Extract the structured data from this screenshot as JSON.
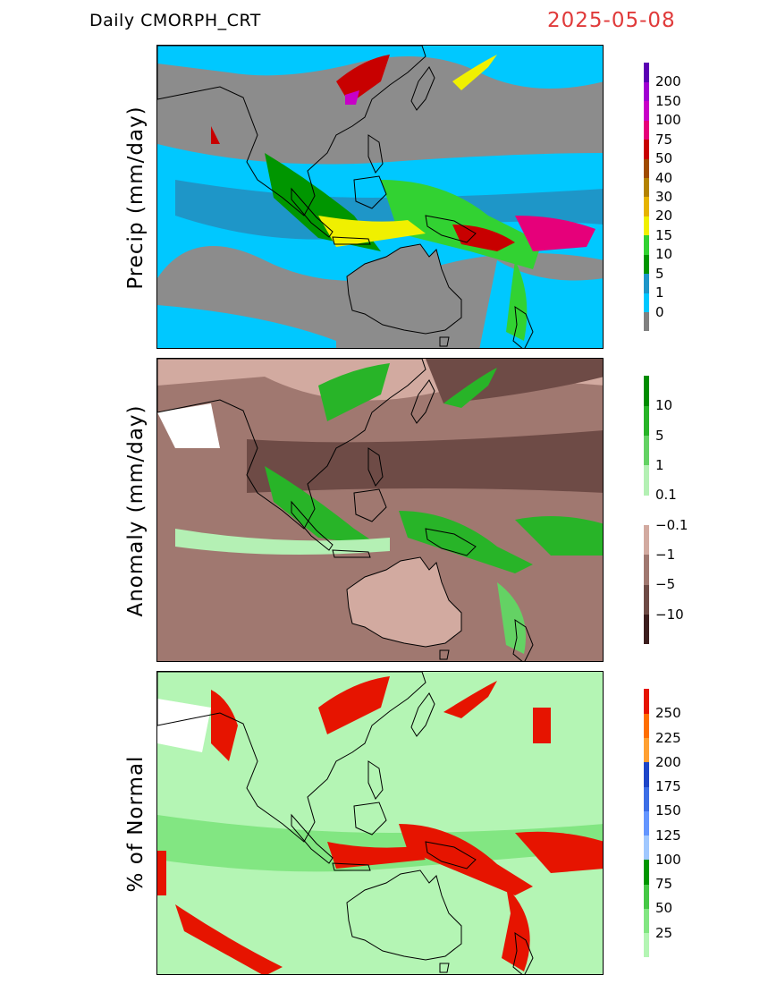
{
  "header": {
    "title": "Daily CMORPH_CRT",
    "date": "2025-05-08"
  },
  "panels": [
    {
      "id": "precip",
      "label": "Precip (mm/day)",
      "colorbar": {
        "colors": [
          "#808080",
          "#00c8ff",
          "#1e96c8",
          "#009600",
          "#32d232",
          "#f0f000",
          "#e6b400",
          "#b48200",
          "#a04b00",
          "#c80000",
          "#e6007a",
          "#c800c8",
          "#a000d2",
          "#5a00b4"
        ],
        "labels": [
          "0",
          "1",
          "5",
          "10",
          "15",
          "20",
          "30",
          "40",
          "50",
          "75",
          "100",
          "150",
          "200"
        ]
      }
    },
    {
      "id": "anomaly",
      "label": "Anomaly (mm/day)",
      "colorbar": {
        "colors": [
          "#3c1e1e",
          "#6e4b46",
          "#a07870",
          "#d2aaa0",
          "#ffffff",
          "#b4f0b4",
          "#64d264",
          "#28b428",
          "#008c00"
        ],
        "labels": [
          "−10",
          "−5",
          "−1",
          "−0.1",
          "0.1",
          "1",
          "5",
          "10"
        ]
      }
    },
    {
      "id": "percent",
      "label": "% of Normal",
      "colorbar": {
        "colors": [
          "#b4f5b4",
          "#82e682",
          "#46c846",
          "#009600",
          "#a0c8ff",
          "#6496ff",
          "#3c6ee6",
          "#1e46c8",
          "#ffa032",
          "#ff6e00",
          "#e61400"
        ],
        "labels": [
          "25",
          "50",
          "75",
          "100",
          "125",
          "150",
          "175",
          "200",
          "225",
          "250"
        ]
      }
    }
  ]
}
